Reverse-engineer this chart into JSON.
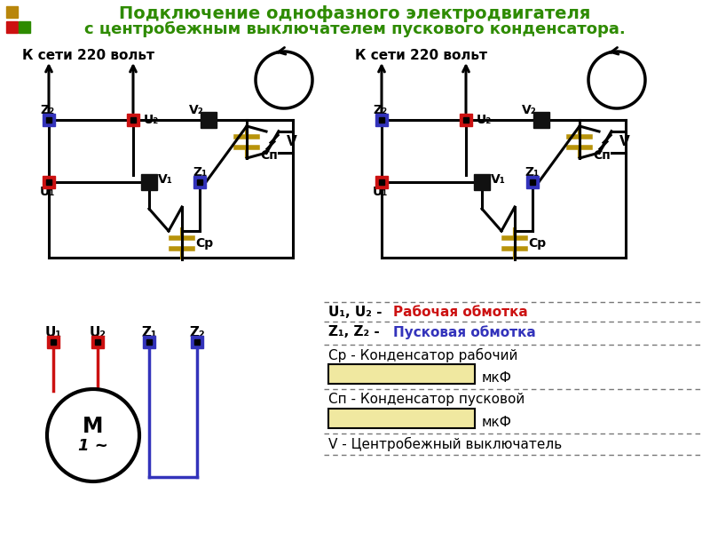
{
  "title_line1": "Подключение однофазного электродвигателя",
  "title_line2": "с центробежным выключателем пускового конденсатора.",
  "title_color": "#2e8b00",
  "bg_color": "#ffffff",
  "text_color": "#000000",
  "red_color": "#cc1111",
  "blue_color": "#3333bb",
  "gold_color": "#b8930a",
  "label_u1u2_colored": "Рабочая обмотка",
  "label_z1z2_colored": "Пусковая обмотка",
  "label_cp": "Ср - Конденсатор рабочий",
  "label_cn": "Сп - Конденсатор пусковой",
  "label_v": "V - Центробежный выключатель",
  "mkf": "мкФ"
}
